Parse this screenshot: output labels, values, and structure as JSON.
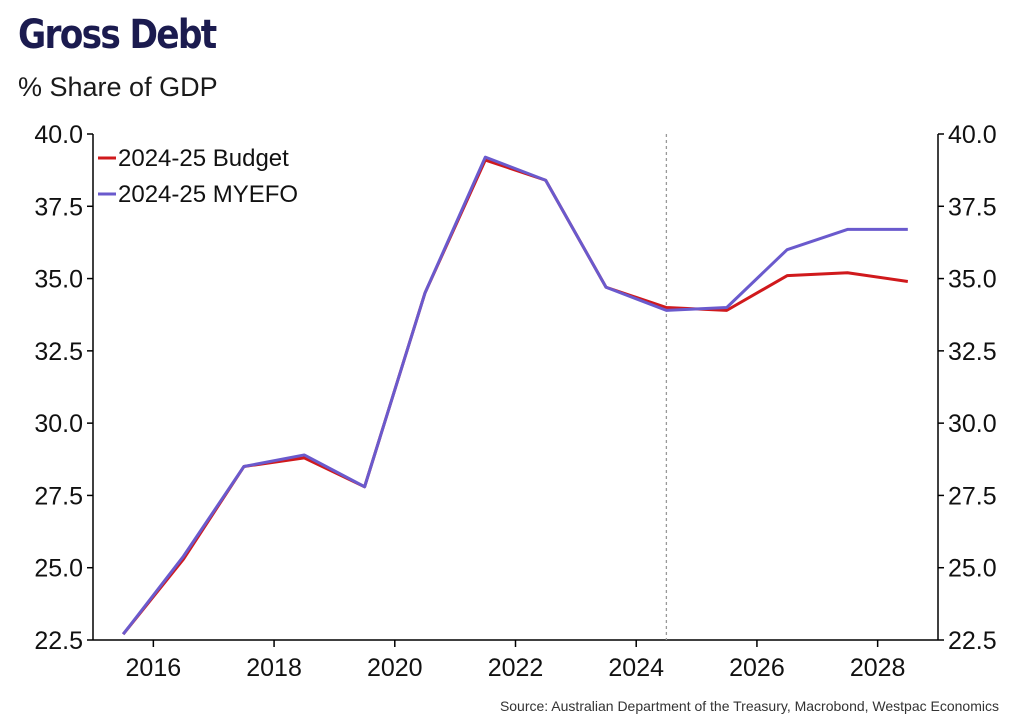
{
  "chart_data": {
    "type": "line",
    "title": "Gross Debt",
    "subtitle": "% Share of GDP",
    "source": "Source: Australian Department of the Treasury, Macrobond, Westpac Economics",
    "x": [
      2015.5,
      2016.5,
      2017.5,
      2018.5,
      2019.5,
      2020.5,
      2021.5,
      2022.5,
      2023.5,
      2024.5,
      2025.5,
      2026.5,
      2027.5,
      2028.5
    ],
    "xlim": [
      2015,
      2029
    ],
    "xticks": [
      2016,
      2018,
      2020,
      2022,
      2024,
      2026,
      2028
    ],
    "xtick_labels": [
      "2016",
      "2018",
      "2020",
      "2022",
      "2024",
      "2026",
      "2028"
    ],
    "ylim": [
      22.5,
      40.0
    ],
    "yticks": [
      22.5,
      25.0,
      27.5,
      30.0,
      32.5,
      35.0,
      37.5,
      40.0
    ],
    "ytick_labels": [
      "22.5",
      "25.0",
      "27.5",
      "30.0",
      "32.5",
      "35.0",
      "37.5",
      "40.0"
    ],
    "vline_x": 2024.5,
    "legend_position": "top-left",
    "series": [
      {
        "name": "2024-25 Budget",
        "color": "#d0191c",
        "values": [
          22.7,
          25.3,
          28.5,
          28.8,
          27.8,
          34.5,
          39.1,
          38.4,
          34.7,
          34.0,
          33.9,
          35.1,
          35.2,
          34.9
        ]
      },
      {
        "name": "2024-25 MYEFO",
        "color": "#6a5acd",
        "values": [
          22.7,
          25.4,
          28.5,
          28.9,
          27.8,
          34.5,
          39.2,
          38.4,
          34.7,
          33.9,
          34.0,
          36.0,
          36.7,
          36.7
        ]
      }
    ]
  }
}
